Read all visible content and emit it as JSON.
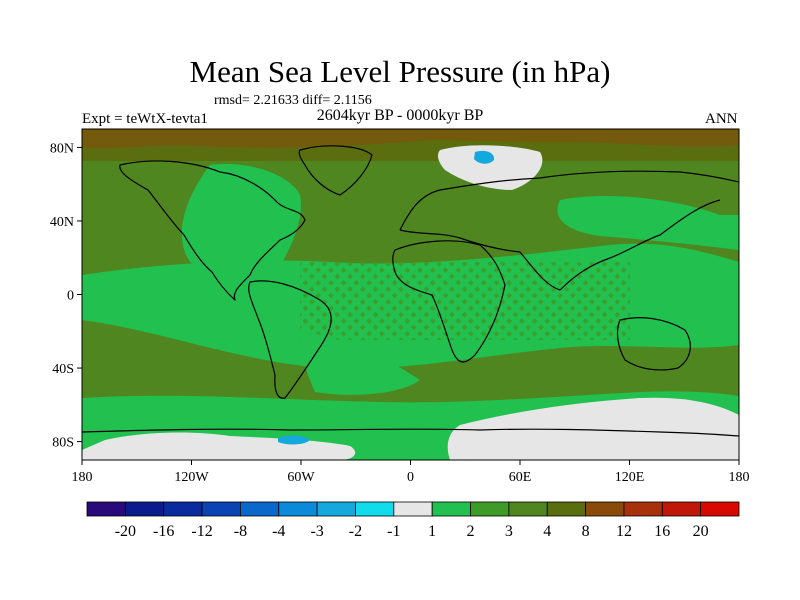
{
  "title": "Mean Sea Level Pressure (in hPa)",
  "stats_line": "rmsd= 2.21633 diff= 2.1156",
  "period_line": "2604kyr BP - 0000kyr BP",
  "experiment_line": "Expt = teWtX-tevta1",
  "season": "ANN",
  "chart_data": {
    "type": "heatmap",
    "projection": "cylindrical equidistant (global)",
    "variable": "Mean Sea Level Pressure anomaly",
    "units": "hPa",
    "xlim": [
      -180,
      180
    ],
    "ylim": [
      -90,
      90
    ],
    "x_ticks": [
      {
        "value": -180,
        "label": "180"
      },
      {
        "value": -120,
        "label": "120W"
      },
      {
        "value": -60,
        "label": "60W"
      },
      {
        "value": 0,
        "label": "0"
      },
      {
        "value": 60,
        "label": "60E"
      },
      {
        "value": 120,
        "label": "120E"
      },
      {
        "value": 180,
        "label": "180"
      }
    ],
    "y_ticks": [
      {
        "value": 80,
        "label": "80N"
      },
      {
        "value": 40,
        "label": "40N"
      },
      {
        "value": 0,
        "label": "0"
      },
      {
        "value": -40,
        "label": "40S"
      },
      {
        "value": -80,
        "label": "80S"
      }
    ],
    "colorbar": {
      "orientation": "horizontal",
      "levels": [
        "-20",
        "-16",
        "-12",
        "-8",
        "-4",
        "-3",
        "-2",
        "-1",
        "1",
        "2",
        "3",
        "4",
        "8",
        "12",
        "16",
        "20"
      ],
      "colors": [
        "#2a0a7a",
        "#0b1a8c",
        "#0a2aa0",
        "#0a44b4",
        "#0a68cc",
        "#0a8ad8",
        "#14a8dc",
        "#10dcec",
        "#e6e6e6",
        "#21c04f",
        "#3e9b28",
        "#4f8620",
        "#5a6e10",
        "#8a4a0a",
        "#a8300a",
        "#c01808",
        "#d80a00"
      ]
    },
    "regions": [
      {
        "name": "mid-latitude oceans and continents",
        "value_range_hpa": [
          3,
          4
        ]
      },
      {
        "name": "tropical band (30S-30N)",
        "value_range_hpa": [
          1,
          3
        ]
      },
      {
        "name": "southern ocean belt (~55S-75S)",
        "value_range_hpa": [
          1,
          2
        ]
      },
      {
        "name": "arctic ocean / polar cap",
        "value_range_hpa": [
          4,
          8
        ]
      },
      {
        "name": "barents-kara sea patch",
        "value_range_hpa": [
          -2,
          1
        ]
      },
      {
        "name": "east antarctica",
        "value_range_hpa": [
          -1,
          1
        ]
      },
      {
        "name": "weddell sea patch",
        "value_range_hpa": [
          -3,
          -1
        ]
      }
    ]
  }
}
